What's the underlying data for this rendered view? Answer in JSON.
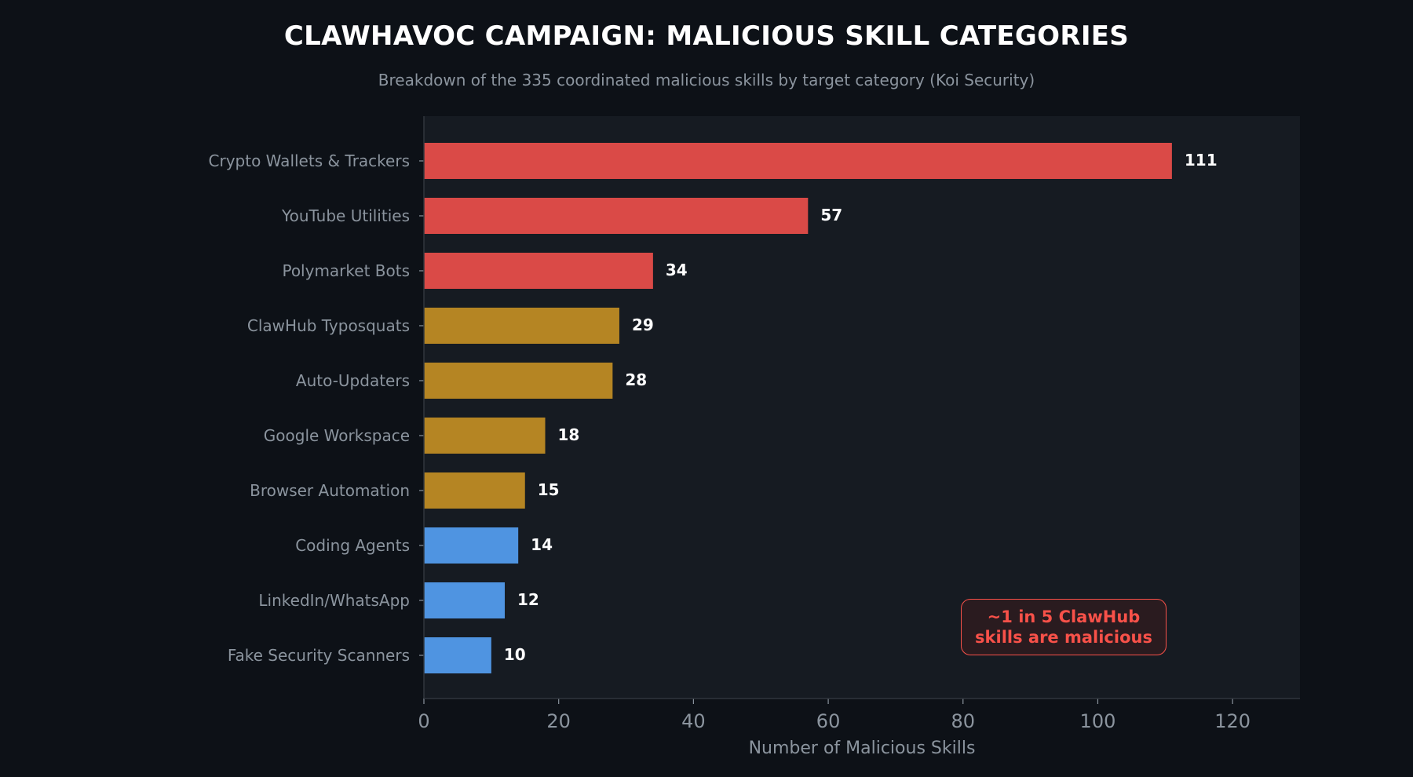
{
  "chart_data": {
    "type": "bar",
    "orientation": "horizontal",
    "title": "CLAWHAVOC CAMPAIGN: MALICIOUS SKILL CATEGORIES",
    "subtitle": "Breakdown of the 335 coordinated malicious skills by target category (Koi Security)",
    "xlabel": "Number of Malicious Skills",
    "ylabel": "",
    "xlim": [
      0,
      130
    ],
    "xticks": [
      0,
      20,
      40,
      60,
      80,
      100,
      120
    ],
    "categories": [
      "Crypto Wallets & Trackers",
      "YouTube Utilities",
      "Polymarket Bots",
      "ClawHub Typosquats",
      "Auto-Updaters",
      "Google Workspace",
      "Browser Automation",
      "Coding Agents",
      "LinkedIn/WhatsApp",
      "Fake Security Scanners"
    ],
    "values": [
      111,
      57,
      34,
      29,
      28,
      18,
      15,
      14,
      12,
      10
    ],
    "bar_colors": [
      "#da4a47",
      "#da4a47",
      "#da4a47",
      "#b58523",
      "#b58523",
      "#b58523",
      "#b58523",
      "#4f94e1",
      "#4f94e1",
      "#4f94e1"
    ],
    "grid": false,
    "legend": "none",
    "annotation": {
      "lines": [
        "~1 in 5 ClawHub",
        "skills are malicious"
      ],
      "color": "#f85149"
    }
  },
  "colors": {
    "background": "#0d1117",
    "plot_background": "#161b22",
    "axis": "#30363d",
    "text_muted": "#8b949e",
    "text_bright": "#ffffff"
  }
}
